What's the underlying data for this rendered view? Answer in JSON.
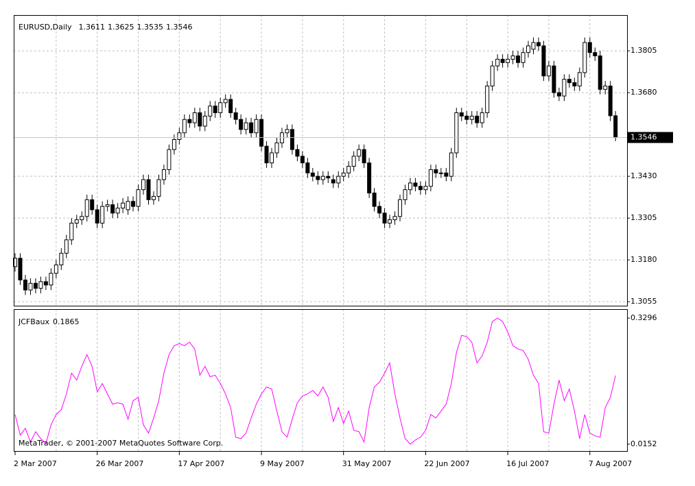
{
  "chart_data": [
    {
      "type": "candlestick",
      "title": "EURUSD,Daily",
      "categories": [
        "2 Mar 2007",
        null,
        null,
        null,
        null,
        null,
        null,
        null,
        null,
        null,
        null,
        null,
        null,
        null,
        null,
        null,
        "26 Mar 2007",
        null,
        null,
        null,
        null,
        null,
        null,
        null,
        null,
        null,
        null,
        null,
        null,
        null,
        null,
        null,
        "17 Apr 2007",
        null,
        null,
        null,
        null,
        null,
        null,
        null,
        null,
        null,
        null,
        null,
        null,
        null,
        null,
        null,
        "9 May 2007",
        null,
        null,
        null,
        null,
        null,
        null,
        null,
        null,
        null,
        null,
        null,
        null,
        null,
        null,
        null,
        "31 May 2007",
        null,
        null,
        null,
        null,
        null,
        null,
        null,
        null,
        null,
        null,
        null,
        null,
        null,
        null,
        null,
        "22 Jun 2007",
        null,
        null,
        null,
        null,
        null,
        null,
        null,
        null,
        null,
        null,
        null,
        null,
        null,
        null,
        null,
        "16 Jul 2007",
        null,
        null,
        null,
        null,
        null,
        null,
        null,
        null,
        null,
        null,
        null,
        null,
        null,
        null,
        null,
        "7 Aug 2007",
        null,
        null,
        null,
        null,
        null
      ],
      "open": [
        1.316,
        1.3185,
        1.312,
        1.309,
        1.311,
        1.3095,
        1.3115,
        1.3105,
        1.314,
        1.3165,
        1.32,
        1.324,
        1.329,
        1.33,
        1.331,
        1.336,
        1.333,
        1.329,
        1.334,
        1.3345,
        1.332,
        1.3335,
        1.333,
        1.3355,
        1.334,
        1.339,
        1.342,
        1.336,
        1.337,
        1.342,
        1.345,
        1.351,
        1.354,
        1.356,
        1.36,
        1.359,
        1.362,
        1.358,
        1.361,
        1.364,
        1.362,
        1.365,
        1.366,
        1.362,
        1.36,
        1.357,
        1.359,
        1.356,
        1.36,
        1.352,
        1.347,
        1.35,
        1.353,
        1.356,
        1.357,
        1.351,
        1.349,
        1.347,
        1.344,
        1.343,
        1.342,
        1.343,
        1.342,
        1.341,
        1.343,
        1.344,
        1.346,
        1.349,
        1.351,
        1.347,
        1.338,
        1.334,
        1.332,
        1.329,
        1.33,
        1.331,
        1.336,
        1.339,
        1.341,
        1.34,
        1.339,
        1.34,
        1.345,
        1.344,
        1.344,
        1.343,
        1.35,
        1.362,
        1.361,
        1.36,
        1.361,
        1.359,
        1.362,
        1.37,
        1.376,
        1.378,
        1.377,
        1.378,
        1.379,
        1.377,
        1.38,
        1.381,
        1.383,
        1.382,
        1.373,
        1.376,
        1.368,
        1.367,
        1.372,
        1.371,
        1.37,
        1.374,
        1.383,
        1.38,
        1.379,
        1.369,
        1.37,
        1.3611
      ],
      "high": [
        1.32,
        1.32,
        1.3135,
        1.3125,
        1.3125,
        1.313,
        1.313,
        1.3155,
        1.318,
        1.3215,
        1.3255,
        1.3305,
        1.3315,
        1.3325,
        1.3375,
        1.3375,
        1.3345,
        1.3355,
        1.336,
        1.336,
        1.335,
        1.3365,
        1.337,
        1.337,
        1.3405,
        1.3435,
        1.3435,
        1.3385,
        1.3435,
        1.3465,
        1.3525,
        1.3555,
        1.3575,
        1.3615,
        1.3615,
        1.3635,
        1.3635,
        1.3625,
        1.3655,
        1.3655,
        1.3665,
        1.3675,
        1.3675,
        1.3635,
        1.3615,
        1.3605,
        1.3605,
        1.3615,
        1.3615,
        1.3535,
        1.3515,
        1.3545,
        1.3575,
        1.3585,
        1.3585,
        1.3525,
        1.3505,
        1.3485,
        1.3455,
        1.3445,
        1.3445,
        1.3445,
        1.3435,
        1.3445,
        1.3455,
        1.3475,
        1.3505,
        1.3525,
        1.3525,
        1.3485,
        1.3395,
        1.3355,
        1.3335,
        1.3315,
        1.3325,
        1.3375,
        1.3405,
        1.3425,
        1.3425,
        1.3415,
        1.3415,
        1.3465,
        1.3465,
        1.3455,
        1.3455,
        1.3515,
        1.3635,
        1.3635,
        1.3625,
        1.3625,
        1.3625,
        1.3635,
        1.3715,
        1.3775,
        1.3795,
        1.3795,
        1.3795,
        1.3805,
        1.3805,
        1.3815,
        1.3835,
        1.3845,
        1.3845,
        1.3835,
        1.3775,
        1.3775,
        1.3695,
        1.3735,
        1.3735,
        1.3725,
        1.3755,
        1.3845,
        1.3845,
        1.3815,
        1.3805,
        1.3715,
        1.3715,
        1.3625
      ],
      "low": [
        1.3145,
        1.3105,
        1.3075,
        1.3075,
        1.308,
        1.308,
        1.309,
        1.309,
        1.3125,
        1.315,
        1.3185,
        1.3225,
        1.3275,
        1.3285,
        1.3295,
        1.3315,
        1.3275,
        1.3275,
        1.3325,
        1.3305,
        1.3305,
        1.332,
        1.3315,
        1.3325,
        1.3325,
        1.3375,
        1.3345,
        1.3345,
        1.3355,
        1.3405,
        1.3435,
        1.3495,
        1.3525,
        1.3545,
        1.3575,
        1.3575,
        1.3565,
        1.3565,
        1.3595,
        1.3605,
        1.3605,
        1.3635,
        1.3605,
        1.3585,
        1.3555,
        1.3555,
        1.3545,
        1.3545,
        1.3505,
        1.3455,
        1.3455,
        1.3485,
        1.3515,
        1.3545,
        1.3495,
        1.3475,
        1.3455,
        1.3425,
        1.3415,
        1.3405,
        1.3405,
        1.341,
        1.3395,
        1.3395,
        1.3415,
        1.3425,
        1.3445,
        1.3475,
        1.3455,
        1.3365,
        1.3325,
        1.3305,
        1.3275,
        1.3275,
        1.3285,
        1.3295,
        1.3345,
        1.3375,
        1.3385,
        1.3375,
        1.3375,
        1.3385,
        1.3425,
        1.3425,
        1.3415,
        1.3415,
        1.3485,
        1.3595,
        1.3585,
        1.3585,
        1.3575,
        1.3575,
        1.3605,
        1.3685,
        1.3745,
        1.3755,
        1.3755,
        1.3765,
        1.3755,
        1.3755,
        1.3785,
        1.3795,
        1.3805,
        1.3715,
        1.3715,
        1.3665,
        1.3655,
        1.3655,
        1.3695,
        1.3685,
        1.3685,
        1.3725,
        1.3785,
        1.3775,
        1.3675,
        1.3675,
        1.3595,
        1.3535
      ],
      "close": [
        1.3185,
        1.312,
        1.309,
        1.311,
        1.3095,
        1.3115,
        1.3105,
        1.314,
        1.3165,
        1.32,
        1.324,
        1.329,
        1.33,
        1.331,
        1.336,
        1.333,
        1.329,
        1.334,
        1.3345,
        1.332,
        1.3335,
        1.335,
        1.3355,
        1.334,
        1.339,
        1.342,
        1.336,
        1.337,
        1.342,
        1.345,
        1.351,
        1.354,
        1.356,
        1.36,
        1.359,
        1.362,
        1.358,
        1.361,
        1.364,
        1.362,
        1.365,
        1.366,
        1.362,
        1.36,
        1.357,
        1.359,
        1.356,
        1.36,
        1.352,
        1.347,
        1.35,
        1.353,
        1.356,
        1.357,
        1.351,
        1.349,
        1.347,
        1.344,
        1.343,
        1.342,
        1.343,
        1.3425,
        1.341,
        1.343,
        1.344,
        1.346,
        1.349,
        1.351,
        1.347,
        1.338,
        1.334,
        1.332,
        1.329,
        1.33,
        1.331,
        1.336,
        1.339,
        1.341,
        1.34,
        1.339,
        1.34,
        1.345,
        1.344,
        1.344,
        1.343,
        1.35,
        1.362,
        1.361,
        1.36,
        1.361,
        1.359,
        1.362,
        1.37,
        1.376,
        1.378,
        1.377,
        1.378,
        1.379,
        1.377,
        1.38,
        1.382,
        1.383,
        1.382,
        1.373,
        1.376,
        1.368,
        1.367,
        1.372,
        1.371,
        1.37,
        1.374,
        1.383,
        1.38,
        1.379,
        1.369,
        1.37,
        1.3611,
        1.3546
      ],
      "ylim": [
        1.3043,
        1.3912
      ],
      "yticks": [
        1.3055,
        {
          "value": 1.318,
          "label": "1.3180"
        },
        1.3305,
        {
          "value": 1.343,
          "label": "1.3430"
        },
        {
          "value": 1.368,
          "label": "1.3680"
        },
        1.3805
      ],
      "grid": true,
      "bull_color": "#ffffff",
      "bear_color": "#000000",
      "price_line_color": "#c0c0c0"
    },
    {
      "type": "line",
      "title": "JCFBaux",
      "color": "#ff00ff",
      "annotation": "MetaTrader, © 2001-2007 MetaQuotes Software Corp.",
      "values": [
        0.0891,
        0.0376,
        0.0548,
        0.0204,
        0.0462,
        0.029,
        0.017,
        0.0634,
        0.0891,
        0.1012,
        0.1407,
        0.1922,
        0.175,
        0.2094,
        0.2386,
        0.2094,
        0.1458,
        0.1665,
        0.1407,
        0.1149,
        0.1184,
        0.1149,
        0.0771,
        0.1235,
        0.1321,
        0.0634,
        0.0428,
        0.0806,
        0.1235,
        0.1922,
        0.2386,
        0.2609,
        0.2661,
        0.2609,
        0.2695,
        0.2524,
        0.1871,
        0.2094,
        0.1836,
        0.1871,
        0.1665,
        0.1407,
        0.1063,
        0.0325,
        0.029,
        0.0428,
        0.0806,
        0.1149,
        0.1407,
        0.1579,
        0.1527,
        0.0977,
        0.0462,
        0.0325,
        0.0771,
        0.1184,
        0.1355,
        0.1407,
        0.1493,
        0.1355,
        0.1579,
        0.1321,
        0.072,
        0.1063,
        0.0668,
        0.0977,
        0.0496,
        0.0462,
        0.0204,
        0.1063,
        0.1579,
        0.1699,
        0.1922,
        0.218,
        0.1407,
        0.0806,
        0.029,
        0.0152,
        0.0256,
        0.0325,
        0.0496,
        0.0891,
        0.0806,
        0.0977,
        0.1149,
        0.1665,
        0.2438,
        0.2867,
        0.2833,
        0.2695,
        0.218,
        0.2352,
        0.2695,
        0.3211,
        0.3296,
        0.3211,
        0.2953,
        0.2609,
        0.2524,
        0.2489,
        0.2266,
        0.1871,
        0.1665,
        0.0462,
        0.0428,
        0.1149,
        0.175,
        0.1235,
        0.1527,
        0.0977,
        0.029,
        0.0891,
        0.0428,
        0.0359,
        0.0325,
        0.1063,
        0.1321,
        0.1865
      ],
      "ylim": [
        -0.002,
        0.352
      ],
      "yticks": [
        0.3296,
        0.0152
      ]
    }
  ]
}
